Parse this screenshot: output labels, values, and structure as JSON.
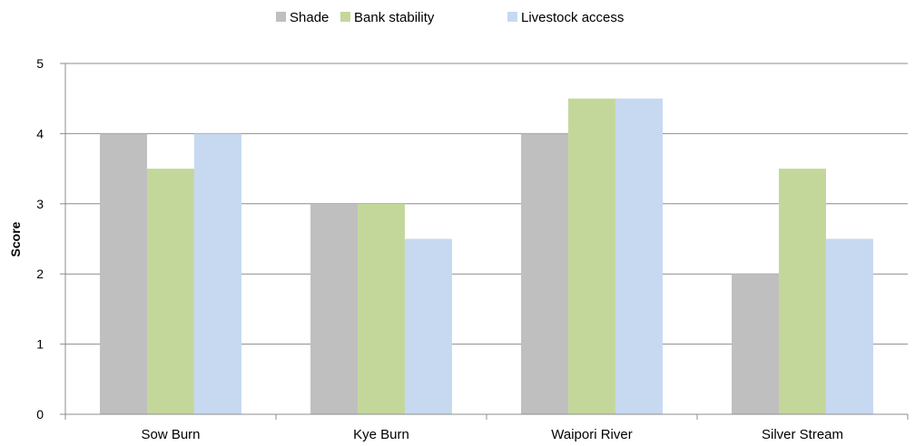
{
  "chart_data": {
    "type": "bar",
    "categories": [
      "Sow Burn",
      "Kye Burn",
      "Waipori River",
      "Silver Stream"
    ],
    "series": [
      {
        "name": "Shade",
        "color": "#bfbfbf",
        "values": [
          4,
          3,
          4,
          2
        ]
      },
      {
        "name": "Bank stability",
        "color": "#c4d79b",
        "values": [
          3.5,
          3,
          4.5,
          3.5
        ]
      },
      {
        "name": "Livestock access",
        "color": "#c6d9f1",
        "values": [
          4,
          2.5,
          4.5,
          2.5
        ]
      }
    ],
    "ylabel": "Score",
    "ylim": [
      0,
      5
    ],
    "yticks": [
      0,
      1,
      2,
      3,
      4,
      5
    ],
    "grid": true,
    "legend_position": "top-center"
  }
}
